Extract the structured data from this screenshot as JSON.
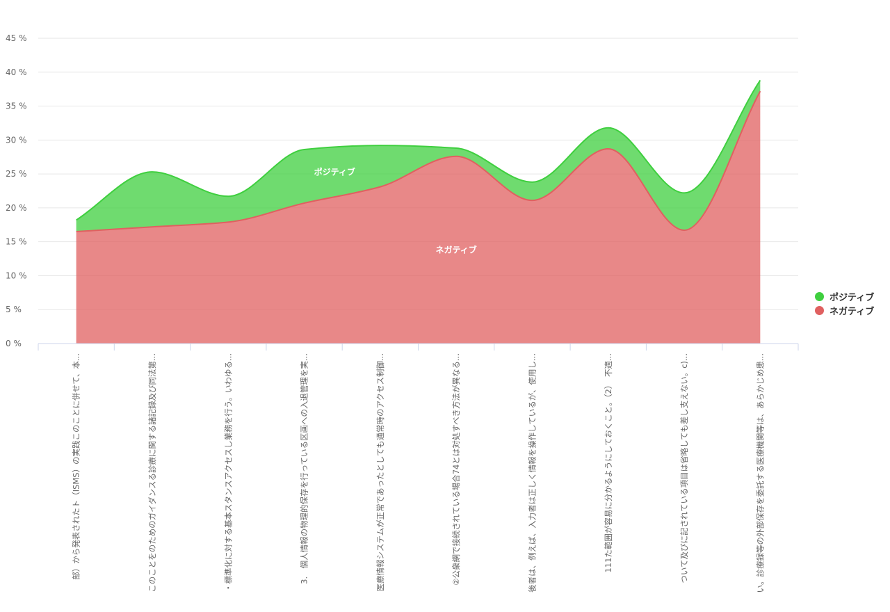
{
  "chart_data": {
    "type": "area",
    "stacked": true,
    "y_tick_suffix": " %",
    "ylim": [
      0,
      45
    ],
    "y_ticks": [
      0,
      5,
      10,
      15,
      20,
      25,
      30,
      35,
      40,
      45
    ],
    "grid": true,
    "legend_position": "right",
    "categories": [
      "部）から発表されたト（ISMS）の実践このことに併せて、本...",
      "このことをのためのガイダンスる診療に関する諸記録及び同法第...",
      "・標準化に対する基本スタンスアクセスし業務を行う。いわゆる...",
      "3.　個人情報の物理的保存を行っている区画への入退管理を実...",
      "医療情報システムが正常であったとしても通常時のアクセス制御...",
      "②公衆網で接続されている場合74とは対処すべき方法が異なる...",
      "後者は、例えば、入力者は正しく情報を操作しているが、使用し...",
      "111た範囲が容易に分かるようにしておくこと。（2）　不適...",
      "ついて及びに記されている項目は省略しても差し支えない。c)...",
      "い。診療録等の外部保存を委託する医療機関等は、あらかじめ患..."
    ],
    "series": [
      {
        "name": "ネガティブ",
        "color": "#e06060",
        "values": [
          16.5,
          17.2,
          17.9,
          20.7,
          23.1,
          27.6,
          21.1,
          28.7,
          16.7,
          37.2
        ]
      },
      {
        "name": "ポジティブ",
        "color": "#3fcf3f",
        "values": [
          1.7,
          8.1,
          3.8,
          7.9,
          6.1,
          1.2,
          2.7,
          3.1,
          5.5,
          1.6
        ]
      }
    ],
    "series_labels": [
      {
        "series": "ポジティブ",
        "text": "ポジティブ"
      },
      {
        "series": "ネガティブ",
        "text": "ネガティブ"
      }
    ]
  }
}
